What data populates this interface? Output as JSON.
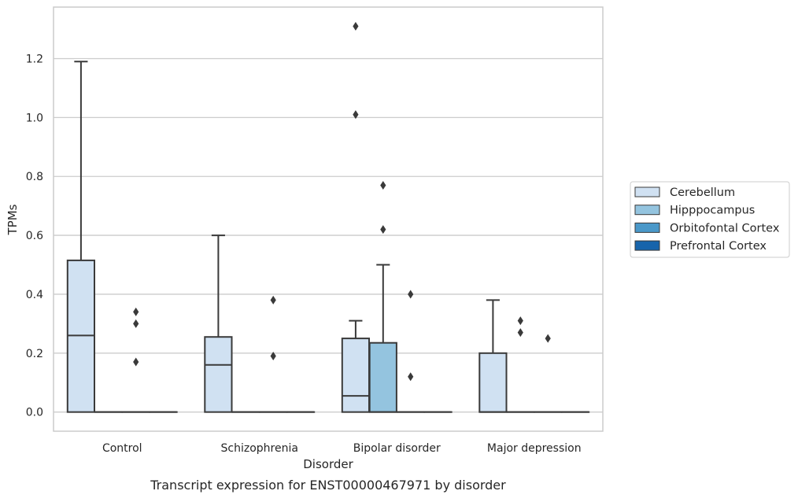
{
  "chart_data": {
    "type": "box",
    "title": "",
    "xlabel": "Disorder",
    "ylabel": "TPMs",
    "caption": "Transcript expression for ENST00000467971 by disorder",
    "categories": [
      "Control",
      "Schizophrenia",
      "Bipolar disorder",
      "Major depression"
    ],
    "ylim": [
      -0.065,
      1.375
    ],
    "yticks": [
      0.0,
      0.2,
      0.4,
      0.6,
      0.8,
      1.0,
      1.2
    ],
    "ytick_labels": [
      "0.0",
      "0.2",
      "0.4",
      "0.6",
      "0.8",
      "1.0",
      "1.2"
    ],
    "grid": "horizontal",
    "legend_position": "right",
    "series": [
      {
        "name": "Cerebellum",
        "color": "#d0e1f2",
        "boxes": [
          {
            "q1": 0.0,
            "median": 0.26,
            "q3": 0.515,
            "whisker_low": 0.0,
            "whisker_high": 1.19,
            "outliers": []
          },
          {
            "q1": 0.0,
            "median": 0.16,
            "q3": 0.255,
            "whisker_low": 0.0,
            "whisker_high": 0.6,
            "outliers": []
          },
          {
            "q1": 0.0,
            "median": 0.055,
            "q3": 0.25,
            "whisker_low": 0.0,
            "whisker_high": 0.31,
            "outliers": [
              1.31,
              1.01
            ]
          },
          {
            "q1": 0.0,
            "median": 0.0,
            "q3": 0.2,
            "whisker_low": 0.0,
            "whisker_high": 0.38,
            "outliers": []
          }
        ]
      },
      {
        "name": "Hipppocampus",
        "color": "#94c4df",
        "boxes": [
          {
            "q1": 0.0,
            "median": 0.0,
            "q3": 0.0,
            "whisker_low": 0.0,
            "whisker_high": 0.0,
            "outliers": []
          },
          {
            "q1": 0.0,
            "median": 0.0,
            "q3": 0.0,
            "whisker_low": 0.0,
            "whisker_high": 0.0,
            "outliers": []
          },
          {
            "q1": 0.0,
            "median": 0.0,
            "q3": 0.235,
            "whisker_low": 0.0,
            "whisker_high": 0.5,
            "outliers": [
              0.77,
              0.62
            ]
          },
          {
            "q1": 0.0,
            "median": 0.0,
            "q3": 0.0,
            "whisker_low": 0.0,
            "whisker_high": 0.0,
            "outliers": [
              0.31,
              0.27
            ]
          }
        ]
      },
      {
        "name": "Orbitofontal Cortex",
        "color": "#4a98c9",
        "boxes": [
          {
            "q1": 0.0,
            "median": 0.0,
            "q3": 0.0,
            "whisker_low": 0.0,
            "whisker_high": 0.0,
            "outliers": [
              0.34,
              0.3,
              0.17
            ]
          },
          {
            "q1": 0.0,
            "median": 0.0,
            "q3": 0.0,
            "whisker_low": 0.0,
            "whisker_high": 0.0,
            "outliers": [
              0.38,
              0.19
            ]
          },
          {
            "q1": 0.0,
            "median": 0.0,
            "q3": 0.0,
            "whisker_low": 0.0,
            "whisker_high": 0.0,
            "outliers": [
              0.4,
              0.12
            ]
          },
          {
            "q1": 0.0,
            "median": 0.0,
            "q3": 0.0,
            "whisker_low": 0.0,
            "whisker_high": 0.0,
            "outliers": [
              0.25
            ]
          }
        ]
      },
      {
        "name": "Prefrontal Cortex",
        "color": "#1764ab",
        "boxes": [
          {
            "q1": 0.0,
            "median": 0.0,
            "q3": 0.0,
            "whisker_low": 0.0,
            "whisker_high": 0.0,
            "outliers": []
          },
          {
            "q1": 0.0,
            "median": 0.0,
            "q3": 0.0,
            "whisker_low": 0.0,
            "whisker_high": 0.0,
            "outliers": []
          },
          {
            "q1": 0.0,
            "median": 0.0,
            "q3": 0.0,
            "whisker_low": 0.0,
            "whisker_high": 0.0,
            "outliers": []
          },
          {
            "q1": 0.0,
            "median": 0.0,
            "q3": 0.0,
            "whisker_low": 0.0,
            "whisker_high": 0.0,
            "outliers": []
          }
        ]
      }
    ],
    "colors": {
      "box_edge": "#3a3a3a",
      "grid": "#cccccc",
      "frame": "#cccccc",
      "outlier": "#3a3a3a"
    }
  }
}
